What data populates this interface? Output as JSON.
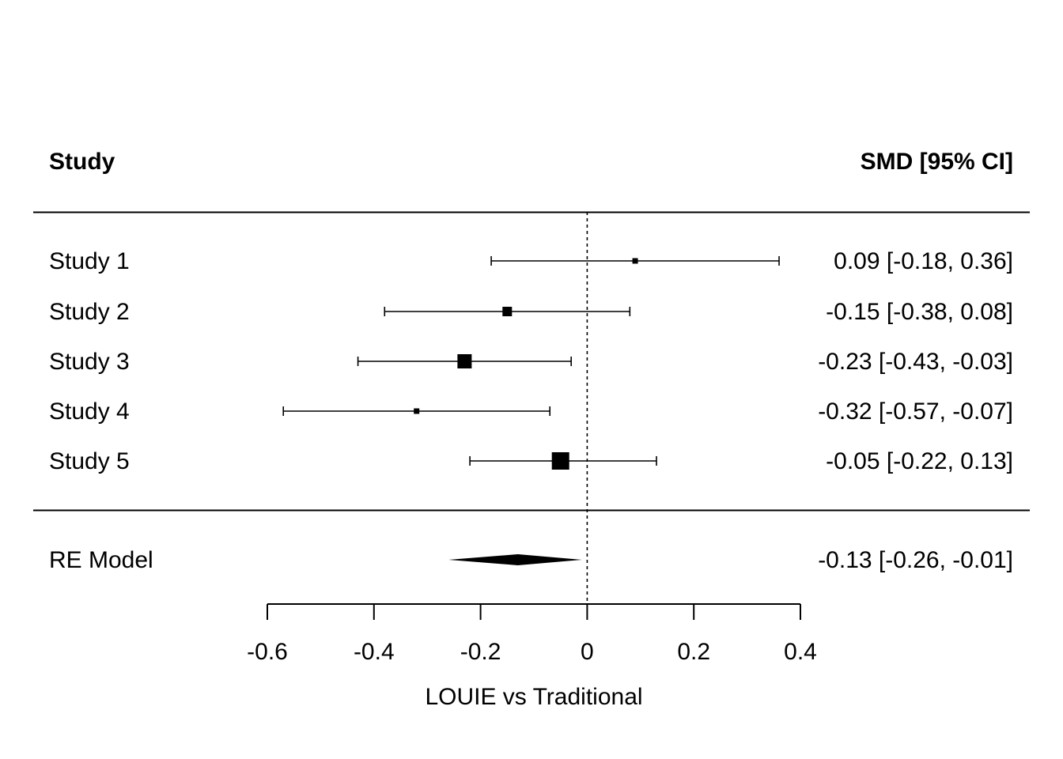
{
  "chart_data": {
    "type": "forest",
    "header": {
      "left": "Study",
      "right": "SMD [95% CI]"
    },
    "studies": [
      {
        "label": "Study 1",
        "estimate": 0.09,
        "ci_lower": -0.18,
        "ci_upper": 0.36,
        "ci_text": "0.09 [-0.18,  0.36]",
        "weight_marker": "small"
      },
      {
        "label": "Study 2",
        "estimate": -0.15,
        "ci_lower": -0.38,
        "ci_upper": 0.08,
        "ci_text": "-0.15 [-0.38,  0.08]",
        "weight_marker": "medium"
      },
      {
        "label": "Study 3",
        "estimate": -0.23,
        "ci_lower": -0.43,
        "ci_upper": -0.03,
        "ci_text": "-0.23 [-0.43, -0.03]",
        "weight_marker": "large"
      },
      {
        "label": "Study 4",
        "estimate": -0.32,
        "ci_lower": -0.57,
        "ci_upper": -0.07,
        "ci_text": "-0.32 [-0.57, -0.07]",
        "weight_marker": "small"
      },
      {
        "label": "Study 5",
        "estimate": -0.05,
        "ci_lower": -0.22,
        "ci_upper": 0.13,
        "ci_text": "-0.05 [-0.22,  0.13]",
        "weight_marker": "largest"
      }
    ],
    "summary": {
      "label": "RE Model",
      "estimate": -0.13,
      "ci_lower": -0.26,
      "ci_upper": -0.01,
      "ci_text": "-0.13 [-0.26, -0.01]"
    },
    "reference_line": 0,
    "x_ticks": [
      -0.6,
      -0.4,
      -0.2,
      0,
      0.2,
      0.4
    ],
    "x_tick_labels": [
      "-0.6",
      "-0.4",
      "-0.2",
      "0",
      "0.2",
      "0.4"
    ],
    "xlim": [
      -0.6,
      0.4
    ],
    "xlabel": "LOUIE vs Traditional",
    "colors": {
      "ink": "#000000",
      "background": "#ffffff"
    }
  }
}
